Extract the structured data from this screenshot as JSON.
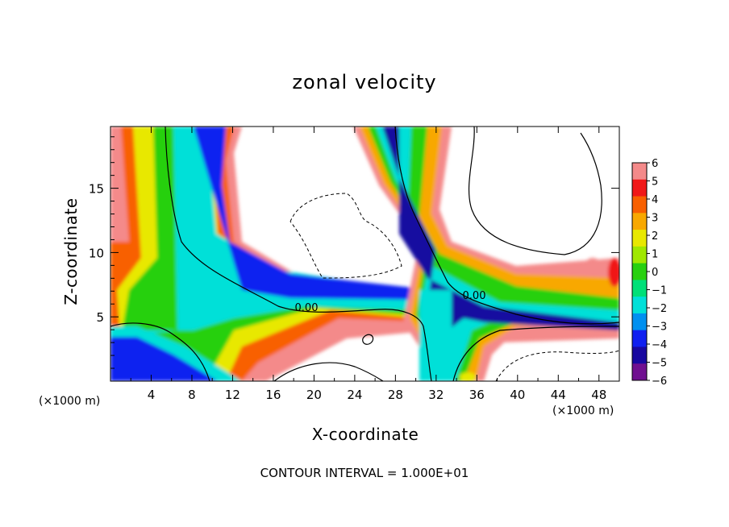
{
  "chart_data": {
    "type": "heatmap",
    "title": "zonal velocity",
    "xlabel": "X-coordinate",
    "ylabel": "Z-coordinate",
    "x_unit": "(×1000 m)",
    "y_unit": "(×1000 m)",
    "xlim": [
      0,
      50
    ],
    "ylim": [
      0,
      19.8
    ],
    "x_ticks": [
      4,
      8,
      12,
      16,
      20,
      24,
      28,
      32,
      36,
      40,
      44,
      48
    ],
    "y_ticks": [
      5,
      10,
      15
    ],
    "colorbar": {
      "levels": [
        6,
        5,
        4,
        3,
        2,
        1,
        0,
        -1,
        -2,
        -3,
        -4,
        -5,
        -6
      ],
      "colors": [
        "#f48a8a",
        "#f01818",
        "#f86000",
        "#f8a800",
        "#e8e800",
        "#a0e800",
        "#28d010",
        "#00e078",
        "#00e0d8",
        "#0090f0",
        "#1020f0",
        "#1808a0",
        "#701090"
      ]
    },
    "contour_labels": [
      "0.00",
      "0.00"
    ],
    "contour_interval_text": "CONTOUR INTERVAL = 1.000E+01"
  }
}
